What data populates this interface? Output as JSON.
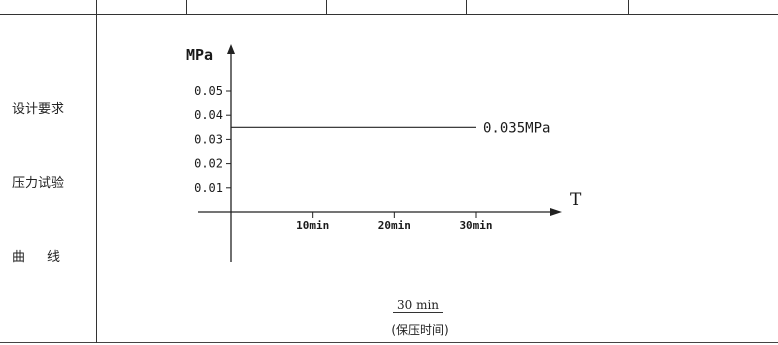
{
  "left_labels": {
    "line1": "设计要求",
    "line2": "压力试验",
    "line3": "曲线"
  },
  "chart_data": {
    "type": "line",
    "ylabel": "MPa",
    "xlabel": "T",
    "y_ticks": [
      "0.01",
      "0.02",
      "0.03",
      "0.04",
      "0.05"
    ],
    "x_ticks": [
      "10min",
      "20min",
      "30min"
    ],
    "ylim": [
      0,
      0.06
    ],
    "series": [
      {
        "x": [
          0,
          30
        ],
        "y": [
          0.035,
          0.035
        ],
        "label": "0.035MPa"
      }
    ],
    "grid": false
  },
  "footer": {
    "hold_time": "30 min",
    "caption": "(保压时间)"
  }
}
